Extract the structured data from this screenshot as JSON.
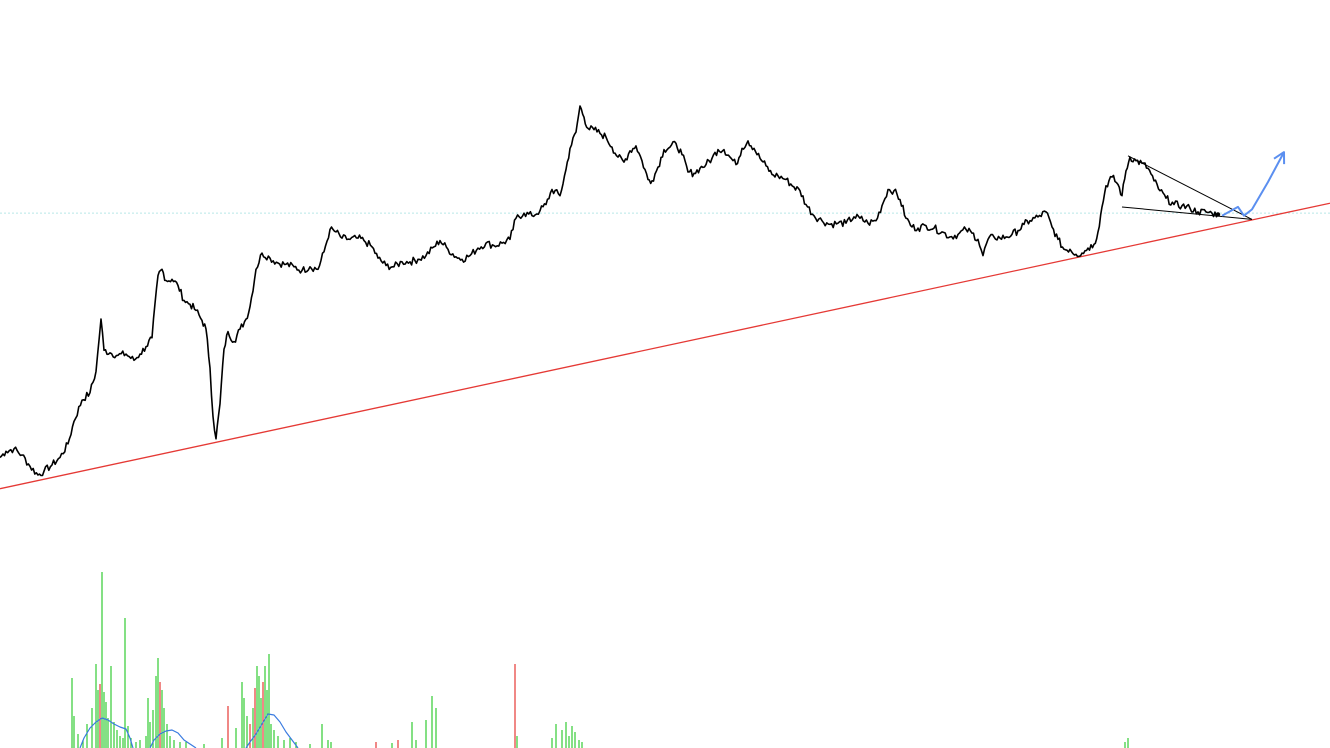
{
  "chart_data": {
    "type": "line",
    "title": "",
    "xlabel": "",
    "ylabel": "",
    "grid": false,
    "legend": "none",
    "x_range": [
      0,
      1330
    ],
    "y_range": [
      0,
      600
    ],
    "colors": {
      "price": "#000000",
      "trendline": "#e53935",
      "pattern": "#000000",
      "projection": "#5b8ff0",
      "reference": "#b8e8e8",
      "volume_up": "#33cc33",
      "volume_down": "#e53935",
      "volume_ma": "#3a7be0"
    },
    "price_anchors": [
      [
        0,
        233
      ],
      [
        6,
        238
      ],
      [
        14,
        240
      ],
      [
        22,
        235
      ],
      [
        30,
        226
      ],
      [
        38,
        219
      ],
      [
        44,
        222
      ],
      [
        52,
        227
      ],
      [
        60,
        233
      ],
      [
        68,
        244
      ],
      [
        74,
        262
      ],
      [
        82,
        279
      ],
      [
        90,
        285
      ],
      [
        96,
        302
      ],
      [
        101,
        344
      ],
      [
        104,
        319
      ],
      [
        110,
        317
      ],
      [
        118,
        315
      ],
      [
        126,
        316
      ],
      [
        134,
        311
      ],
      [
        140,
        316
      ],
      [
        146,
        322
      ],
      [
        152,
        329
      ],
      [
        158,
        379
      ],
      [
        162,
        384
      ],
      [
        166,
        375
      ],
      [
        172,
        376
      ],
      [
        178,
        371
      ],
      [
        184,
        359
      ],
      [
        190,
        356
      ],
      [
        196,
        351
      ],
      [
        202,
        343
      ],
      [
        206,
        336
      ],
      [
        210,
        305
      ],
      [
        213,
        266
      ],
      [
        216,
        248
      ],
      [
        220,
        276
      ],
      [
        224,
        320
      ],
      [
        228,
        334
      ],
      [
        234,
        326
      ],
      [
        240,
        336
      ],
      [
        246,
        344
      ],
      [
        250,
        354
      ],
      [
        256,
        384
      ],
      [
        262,
        397
      ],
      [
        270,
        393
      ],
      [
        278,
        389
      ],
      [
        286,
        388
      ],
      [
        294,
        386
      ],
      [
        302,
        383
      ],
      [
        310,
        386
      ],
      [
        318,
        384
      ],
      [
        324,
        398
      ],
      [
        330,
        416
      ],
      [
        336,
        414
      ],
      [
        342,
        409
      ],
      [
        350,
        408
      ],
      [
        358,
        409
      ],
      [
        364,
        407
      ],
      [
        372,
        402
      ],
      [
        378,
        393
      ],
      [
        386,
        387
      ],
      [
        394,
        386
      ],
      [
        402,
        390
      ],
      [
        410,
        390
      ],
      [
        418,
        392
      ],
      [
        426,
        395
      ],
      [
        434,
        402
      ],
      [
        440,
        407
      ],
      [
        448,
        400
      ],
      [
        456,
        394
      ],
      [
        462,
        392
      ],
      [
        470,
        395
      ],
      [
        478,
        401
      ],
      [
        486,
        405
      ],
      [
        494,
        403
      ],
      [
        502,
        405
      ],
      [
        510,
        408
      ],
      [
        516,
        425
      ],
      [
        524,
        429
      ],
      [
        532,
        427
      ],
      [
        540,
        431
      ],
      [
        546,
        436
      ],
      [
        552,
        448
      ],
      [
        560,
        443
      ],
      [
        566,
        464
      ],
      [
        570,
        481
      ],
      [
        576,
        494
      ],
      [
        580,
        515
      ],
      [
        584,
        506
      ],
      [
        588,
        497
      ],
      [
        594,
        496
      ],
      [
        600,
        493
      ],
      [
        606,
        490
      ],
      [
        612,
        482
      ],
      [
        618,
        474
      ],
      [
        624,
        470
      ],
      [
        630,
        479
      ],
      [
        636,
        483
      ],
      [
        642,
        471
      ],
      [
        648,
        456
      ],
      [
        652,
        455
      ],
      [
        658,
        466
      ],
      [
        664,
        480
      ],
      [
        670,
        482
      ],
      [
        676,
        485
      ],
      [
        682,
        476
      ],
      [
        688,
        462
      ],
      [
        694,
        461
      ],
      [
        700,
        465
      ],
      [
        706,
        468
      ],
      [
        712,
        473
      ],
      [
        718,
        480
      ],
      [
        724,
        480
      ],
      [
        730,
        474
      ],
      [
        736,
        468
      ],
      [
        742,
        481
      ],
      [
        748,
        487
      ],
      [
        754,
        481
      ],
      [
        760,
        473
      ],
      [
        766,
        467
      ],
      [
        772,
        460
      ],
      [
        778,
        459
      ],
      [
        786,
        456
      ],
      [
        794,
        450
      ],
      [
        800,
        447
      ],
      [
        806,
        436
      ],
      [
        814,
        427
      ],
      [
        822,
        423
      ],
      [
        830,
        420
      ],
      [
        838,
        421
      ],
      [
        846,
        421
      ],
      [
        854,
        426
      ],
      [
        860,
        425
      ],
      [
        868,
        421
      ],
      [
        876,
        423
      ],
      [
        882,
        435
      ],
      [
        888,
        448
      ],
      [
        894,
        447
      ],
      [
        900,
        440
      ],
      [
        906,
        425
      ],
      [
        912,
        418
      ],
      [
        918,
        417
      ],
      [
        926,
        419
      ],
      [
        934,
        417
      ],
      [
        942,
        414
      ],
      [
        950,
        410
      ],
      [
        958,
        412
      ],
      [
        966,
        416
      ],
      [
        972,
        413
      ],
      [
        978,
        408
      ],
      [
        983,
        395
      ],
      [
        988,
        408
      ],
      [
        994,
        410
      ],
      [
        1000,
        409
      ],
      [
        1006,
        410
      ],
      [
        1012,
        412
      ],
      [
        1018,
        415
      ],
      [
        1024,
        420
      ],
      [
        1030,
        423
      ],
      [
        1038,
        426
      ],
      [
        1046,
        430
      ],
      [
        1052,
        418
      ],
      [
        1058,
        408
      ],
      [
        1064,
        400
      ],
      [
        1070,
        400
      ],
      [
        1076,
        396
      ],
      [
        1082,
        397
      ],
      [
        1088,
        401
      ],
      [
        1094,
        404
      ],
      [
        1098,
        414
      ],
      [
        1102,
        434
      ],
      [
        1106,
        451
      ],
      [
        1112,
        458
      ],
      [
        1118,
        452
      ],
      [
        1122,
        443
      ],
      [
        1126,
        463
      ],
      [
        1130,
        474
      ],
      [
        1136,
        471
      ],
      [
        1142,
        469
      ],
      [
        1148,
        465
      ],
      [
        1154,
        455
      ],
      [
        1160,
        447
      ],
      [
        1166,
        441
      ],
      [
        1174,
        436
      ],
      [
        1182,
        435
      ],
      [
        1190,
        433
      ],
      [
        1198,
        430
      ],
      [
        1206,
        430
      ],
      [
        1212,
        429
      ],
      [
        1218,
        428
      ]
    ],
    "trendline": [
      [
        0,
        208
      ],
      [
        1330,
        437
      ]
    ],
    "reference_level": 429,
    "pattern_lines": [
      [
        [
          1128,
          475
        ],
        [
          1252,
          424
        ]
      ],
      [
        [
          1122,
          434
        ],
        [
          1252,
          424
        ]
      ]
    ],
    "projection_path": [
      [
        1222,
        427
      ],
      [
        1238,
        434
      ],
      [
        1244,
        427
      ],
      [
        1252,
        432
      ],
      [
        1268,
        454
      ],
      [
        1284,
        478
      ]
    ],
    "volume": {
      "bars": [
        [
          72,
          70,
          "up"
        ],
        [
          74,
          32,
          "up"
        ],
        [
          78,
          14,
          "up"
        ],
        [
          83,
          8,
          "up"
        ],
        [
          87,
          24,
          "up"
        ],
        [
          92,
          40,
          "up"
        ],
        [
          96,
          84,
          "up"
        ],
        [
          98,
          58,
          "up"
        ],
        [
          100,
          64,
          "down"
        ],
        [
          102,
          176,
          "up"
        ],
        [
          104,
          56,
          "up"
        ],
        [
          106,
          46,
          "up"
        ],
        [
          108,
          30,
          "up"
        ],
        [
          111,
          82,
          "up"
        ],
        [
          114,
          26,
          "up"
        ],
        [
          117,
          18,
          "up"
        ],
        [
          120,
          12,
          "up"
        ],
        [
          123,
          10,
          "up"
        ],
        [
          125,
          130,
          "up"
        ],
        [
          128,
          22,
          "up"
        ],
        [
          131,
          10,
          "up"
        ],
        [
          136,
          6,
          "up"
        ],
        [
          140,
          8,
          "up"
        ],
        [
          146,
          12,
          "up"
        ],
        [
          148,
          50,
          "up"
        ],
        [
          150,
          26,
          "up"
        ],
        [
          153,
          38,
          "up"
        ],
        [
          156,
          72,
          "up"
        ],
        [
          158,
          90,
          "up"
        ],
        [
          160,
          66,
          "down"
        ],
        [
          162,
          58,
          "up"
        ],
        [
          164,
          40,
          "up"
        ],
        [
          167,
          24,
          "up"
        ],
        [
          170,
          12,
          "up"
        ],
        [
          174,
          8,
          "up"
        ],
        [
          180,
          6,
          "up"
        ],
        [
          186,
          6,
          "up"
        ],
        [
          204,
          4,
          "up"
        ],
        [
          222,
          10,
          "up"
        ],
        [
          228,
          42,
          "down"
        ],
        [
          236,
          20,
          "up"
        ],
        [
          242,
          66,
          "up"
        ],
        [
          244,
          50,
          "up"
        ],
        [
          247,
          32,
          "up"
        ],
        [
          250,
          24,
          "down"
        ],
        [
          253,
          40,
          "up"
        ],
        [
          255,
          60,
          "down"
        ],
        [
          257,
          82,
          "up"
        ],
        [
          259,
          72,
          "up"
        ],
        [
          261,
          50,
          "up"
        ],
        [
          263,
          66,
          "down"
        ],
        [
          265,
          82,
          "up"
        ],
        [
          267,
          58,
          "up"
        ],
        [
          269,
          94,
          "up"
        ],
        [
          271,
          24,
          "up"
        ],
        [
          274,
          18,
          "up"
        ],
        [
          278,
          12,
          "up"
        ],
        [
          284,
          8,
          "up"
        ],
        [
          290,
          10,
          "up"
        ],
        [
          296,
          6,
          "up"
        ],
        [
          310,
          4,
          "up"
        ],
        [
          322,
          24,
          "up"
        ],
        [
          328,
          8,
          "up"
        ],
        [
          331,
          6,
          "up"
        ],
        [
          376,
          6,
          "down"
        ],
        [
          392,
          5,
          "up"
        ],
        [
          398,
          8,
          "down"
        ],
        [
          412,
          26,
          "up"
        ],
        [
          416,
          8,
          "up"
        ],
        [
          426,
          28,
          "up"
        ],
        [
          432,
          52,
          "up"
        ],
        [
          436,
          40,
          "up"
        ],
        [
          515,
          84,
          "down"
        ],
        [
          517,
          12,
          "up"
        ],
        [
          552,
          10,
          "up"
        ],
        [
          556,
          24,
          "up"
        ],
        [
          562,
          18,
          "up"
        ],
        [
          566,
          26,
          "up"
        ],
        [
          569,
          12,
          "up"
        ],
        [
          572,
          22,
          "up"
        ],
        [
          575,
          16,
          "up"
        ],
        [
          579,
          8,
          "up"
        ],
        [
          582,
          6,
          "up"
        ],
        [
          1125,
          6,
          "up"
        ],
        [
          1128,
          10,
          "up"
        ]
      ],
      "ma_anchors": [
        [
          80,
          0
        ],
        [
          84,
          10
        ],
        [
          90,
          20
        ],
        [
          96,
          26
        ],
        [
          102,
          30
        ],
        [
          108,
          28
        ],
        [
          114,
          24
        ],
        [
          120,
          21
        ],
        [
          126,
          19
        ],
        [
          130,
          10
        ],
        [
          133,
          0
        ],
        [
          150,
          0
        ],
        [
          154,
          8
        ],
        [
          160,
          14
        ],
        [
          166,
          17
        ],
        [
          172,
          18
        ],
        [
          178,
          15
        ],
        [
          184,
          8
        ],
        [
          190,
          4
        ],
        [
          196,
          0
        ],
        [
          246,
          0
        ],
        [
          250,
          6
        ],
        [
          256,
          14
        ],
        [
          262,
          24
        ],
        [
          268,
          34
        ],
        [
          274,
          33
        ],
        [
          280,
          26
        ],
        [
          286,
          16
        ],
        [
          292,
          8
        ],
        [
          298,
          0
        ]
      ]
    }
  }
}
